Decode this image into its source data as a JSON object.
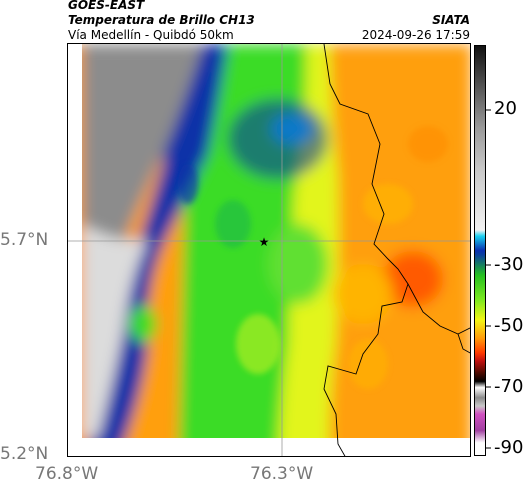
{
  "header": {
    "satellite": "GOES-EAST",
    "product": "Temperatura de Brillo CH13",
    "region": "Vía Medellín - Quibdó 50km",
    "org": "SIATA",
    "datetime": "2024-09-26 17:59"
  },
  "map": {
    "lat_labels": [
      "5.7°N",
      "5.2°N"
    ],
    "lon_labels": [
      "76.8°W",
      "76.3°W"
    ],
    "marker": "star"
  },
  "colorbar": {
    "ticks": [
      "20",
      "-30",
      "-50",
      "-70",
      "-90"
    ]
  }
}
